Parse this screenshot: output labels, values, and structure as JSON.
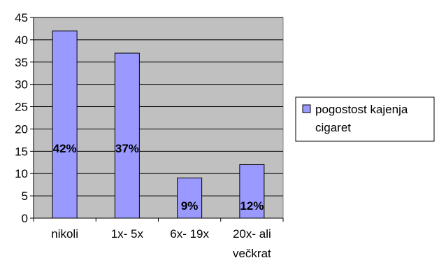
{
  "chart_data": {
    "type": "bar",
    "categories": [
      [
        "nikoli"
      ],
      [
        "1x- 5x"
      ],
      [
        "6x- 19x"
      ],
      [
        "20x- ali",
        "večkrat"
      ]
    ],
    "series": [
      {
        "name": "pogostost kajenja cigaret",
        "values": [
          42,
          37,
          9,
          12
        ],
        "data_labels": [
          "42%",
          "37%",
          "9%",
          "12%"
        ]
      }
    ],
    "ylim": [
      0,
      45
    ],
    "y_ticks": [
      "0",
      "5",
      "10",
      "15",
      "20",
      "25",
      "30",
      "35",
      "40",
      "45"
    ],
    "grid": true,
    "legend_position": "right",
    "legend_lines": [
      "pogostost kajenja",
      "cigaret"
    ],
    "colors": {
      "plot_area": "#c0c0c0",
      "bar_fill": "#9999ff",
      "bar_stroke": "#000000",
      "grid": "#000000"
    }
  }
}
